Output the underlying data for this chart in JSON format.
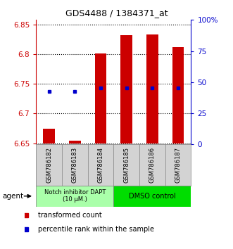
{
  "title": "GDS4488 / 1384371_at",
  "samples": [
    "GSM786182",
    "GSM786183",
    "GSM786184",
    "GSM786185",
    "GSM786186",
    "GSM786187"
  ],
  "bar_values": [
    6.674,
    6.654,
    6.801,
    6.832,
    6.833,
    6.812
  ],
  "bar_base": 6.65,
  "percentile_values": [
    6.737,
    6.737,
    6.743,
    6.743,
    6.743,
    6.743
  ],
  "ylim": [
    6.648,
    6.858
  ],
  "yticks_left": [
    6.65,
    6.7,
    6.75,
    6.8,
    6.85
  ],
  "yticks_right_labels": [
    "0",
    "25",
    "50",
    "75",
    "100%"
  ],
  "yticks_right_vals": [
    0,
    25,
    50,
    75,
    100
  ],
  "bar_color": "#cc0000",
  "percentile_color": "#0000cc",
  "group1_label": "Notch inhibitor DAPT\n(10 μM.)",
  "group2_label": "DMSO control",
  "group1_color": "#aaffaa",
  "group2_color": "#00dd00",
  "legend_bar": "transformed count",
  "legend_pct": "percentile rank within the sample",
  "agent_label": "agent"
}
